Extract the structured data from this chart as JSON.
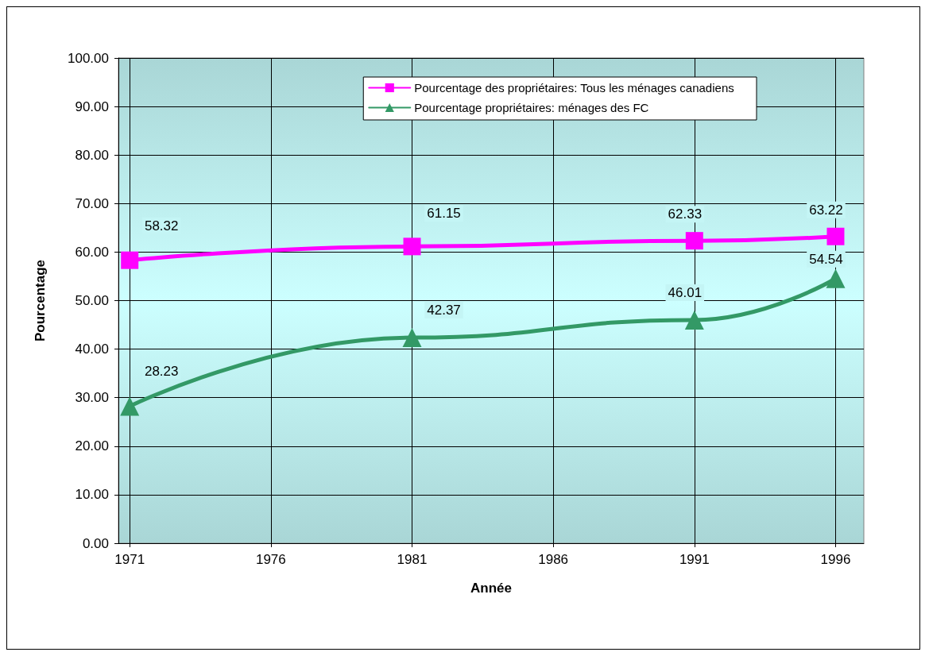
{
  "chart_data": {
    "type": "line",
    "xlabel": "Année",
    "ylabel": "Pourcentage",
    "x": [
      1971,
      1981,
      1991,
      1996
    ],
    "series": [
      {
        "name": "Pourcentage des propriétaires: Tous les ménages canadiens",
        "color": "#ff00ff",
        "marker": "square",
        "values": [
          58.32,
          61.15,
          62.33,
          63.22
        ]
      },
      {
        "name": "Pourcentage propriétaires: ménages des FC",
        "color": "#339966",
        "marker": "triangle",
        "values": [
          28.23,
          42.37,
          46.01,
          54.54
        ]
      }
    ],
    "xlim": [
      1970.6,
      1997
    ],
    "xticks": [
      1971,
      1976,
      1981,
      1986,
      1991,
      1996
    ],
    "ylim": [
      0,
      100
    ],
    "yticks": [
      {
        "value": 0,
        "label": "0.00"
      },
      {
        "value": 10,
        "label": "10.00"
      },
      {
        "value": 20,
        "label": "20.00"
      },
      {
        "value": 30,
        "label": "30.00"
      },
      {
        "value": 40,
        "label": "40.00"
      },
      {
        "value": 50,
        "label": "50.00"
      },
      {
        "value": 60,
        "label": "60.00"
      },
      {
        "value": 70,
        "label": "70.00"
      },
      {
        "value": 80,
        "label": "80.00"
      },
      {
        "value": 90,
        "label": "90.00"
      },
      {
        "value": 100,
        "label": "100.00"
      }
    ],
    "grid": true,
    "legend": "top right",
    "data_labels": true,
    "line_style": "solid"
  }
}
